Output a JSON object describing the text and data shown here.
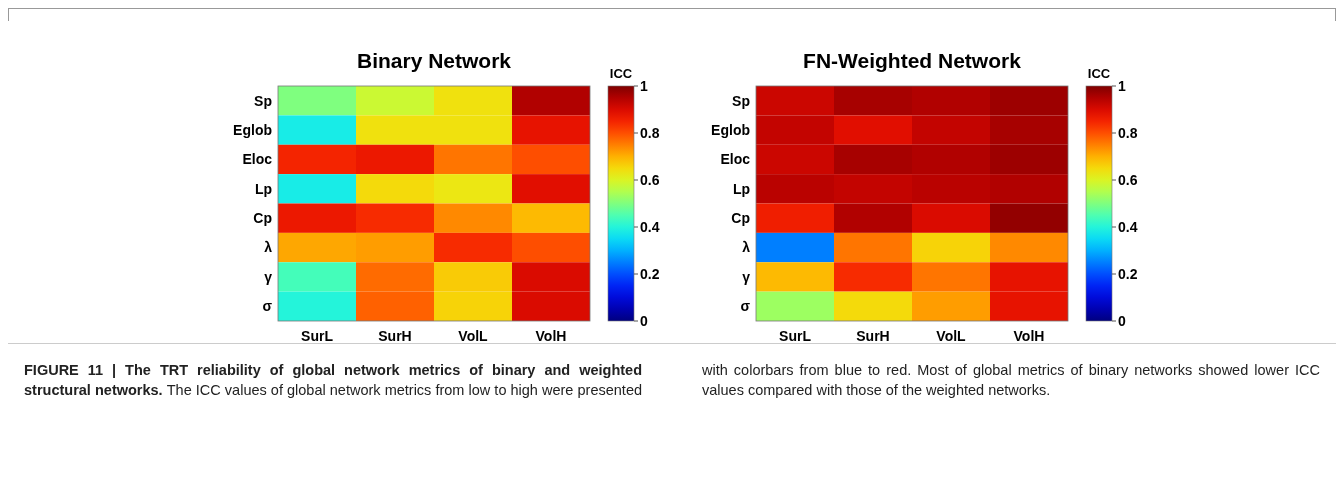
{
  "chart_data": [
    {
      "type": "heatmap",
      "title": "Binary Network",
      "clabel": "ICC",
      "categories": [
        "SurL",
        "SurH",
        "VolL",
        "VolH"
      ],
      "y_categories": [
        "Sp",
        "Eglob",
        "Eloc",
        "Lp",
        "Cp",
        "λ",
        "γ",
        "σ"
      ],
      "cells": [
        [
          0.5,
          0.58,
          0.64,
          0.95
        ],
        [
          0.38,
          0.64,
          0.64,
          0.88
        ],
        [
          0.85,
          0.87,
          0.76,
          0.8
        ],
        [
          0.38,
          0.65,
          0.63,
          0.89
        ],
        [
          0.87,
          0.84,
          0.74,
          0.69
        ],
        [
          0.71,
          0.72,
          0.84,
          0.8
        ],
        [
          0.44,
          0.77,
          0.67,
          0.9
        ],
        [
          0.4,
          0.78,
          0.66,
          0.9
        ]
      ],
      "clim": [
        0,
        1
      ],
      "cticks": [
        0,
        0.2,
        0.4,
        0.6,
        0.8,
        1
      ],
      "annotations": [
        "FIGURE 11 | The TRT reliability of global network metrics of binary and weighted structural networks.",
        "The ICC values of global network metrics from low to high were presented with colorbars from blue to red. Most of global metrics of binary networks showed lower ICC values compared with those of the weighted networks."
      ]
    },
    {
      "type": "heatmap",
      "title": "FN-Weighted Network",
      "clabel": "ICC",
      "categories": [
        "SurL",
        "SurH",
        "VolL",
        "VolH"
      ],
      "y_categories": [
        "Sp",
        "Eglob",
        "Eloc",
        "Lp",
        "Cp",
        "λ",
        "γ",
        "σ"
      ],
      "cells": [
        [
          0.92,
          0.96,
          0.95,
          0.97
        ],
        [
          0.93,
          0.89,
          0.93,
          0.96
        ],
        [
          0.92,
          0.96,
          0.95,
          0.97
        ],
        [
          0.94,
          0.93,
          0.94,
          0.95
        ],
        [
          0.86,
          0.95,
          0.9,
          0.98
        ],
        [
          0.25,
          0.76,
          0.66,
          0.74
        ],
        [
          0.69,
          0.84,
          0.76,
          0.88
        ],
        [
          0.53,
          0.65,
          0.72,
          0.88
        ]
      ],
      "clim": [
        0,
        1
      ],
      "cticks": [
        0,
        0.2,
        0.4,
        0.6,
        0.8,
        1
      ]
    }
  ]
}
